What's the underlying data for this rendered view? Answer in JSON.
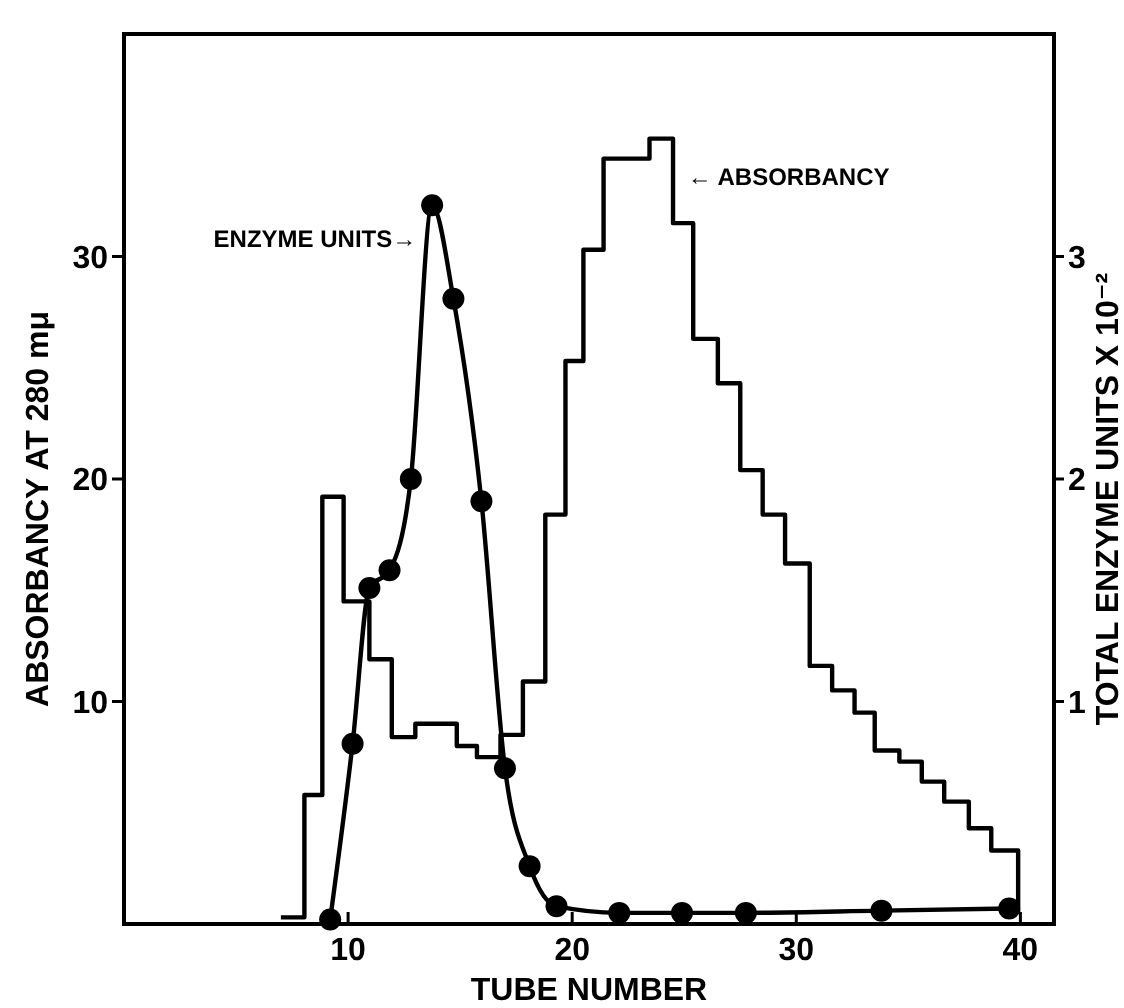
{
  "chart_data": {
    "type": "line",
    "xlabel": "TUBE NUMBER",
    "ylabel": "ABSORBANCY AT 280 mμ",
    "y2label": "TOTAL ENZYME UNITS X 10⁻²",
    "xlim": [
      0,
      41.5
    ],
    "xticks": [
      10,
      20,
      30,
      40
    ],
    "ylim": [
      0,
      40
    ],
    "yticks": [
      10,
      20,
      30
    ],
    "y2lim": [
      0,
      4
    ],
    "y2ticks": [
      1,
      2,
      3
    ],
    "grid": false,
    "series": [
      {
        "type": "step",
        "color": "#000000",
        "marker": "none",
        "x": [
          7.0,
          8.05,
          8.85,
          9.8,
          10.95,
          11.95,
          13.0,
          14.85,
          15.75,
          16.8,
          17.8,
          18.8,
          19.7,
          20.5,
          21.4,
          23.45,
          24.5,
          25.4,
          26.5,
          27.5,
          28.5,
          29.5,
          30.6,
          31.6,
          32.6,
          33.5,
          34.6,
          35.6,
          36.6,
          37.7,
          38.7,
          39.9
        ],
        "values": [
          0.3,
          5.8,
          19.2,
          14.5,
          11.9,
          8.4,
          9.0,
          8.0,
          7.5,
          8.5,
          10.9,
          18.4,
          25.3,
          30.3,
          34.4,
          35.3,
          31.5,
          26.3,
          24.3,
          20.4,
          18.4,
          16.2,
          11.6,
          10.5,
          9.5,
          7.8,
          7.3,
          6.4,
          5.5,
          4.3,
          3.3,
          0.5
        ]
      },
      {
        "axis": "y2",
        "color": "#000000",
        "marker": "circle",
        "x": [
          9.2,
          10.2,
          10.95,
          11.85,
          12.8,
          13.75,
          14.7,
          15.95,
          17.0,
          18.1,
          19.3,
          22.1,
          24.9,
          27.75,
          33.8,
          39.5
        ],
        "values": [
          0.02,
          0.81,
          1.51,
          1.59,
          2.0,
          3.23,
          2.81,
          1.9,
          0.7,
          0.26,
          0.08,
          0.05,
          0.05,
          0.05,
          0.06,
          0.07
        ]
      }
    ],
    "annotations": [
      {
        "text": "ENZYME UNITS→",
        "x": 13.4,
        "y": 30.8
      },
      {
        "text": "← ABSORBANCY",
        "x": 24.8,
        "y": 33.6
      }
    ]
  }
}
